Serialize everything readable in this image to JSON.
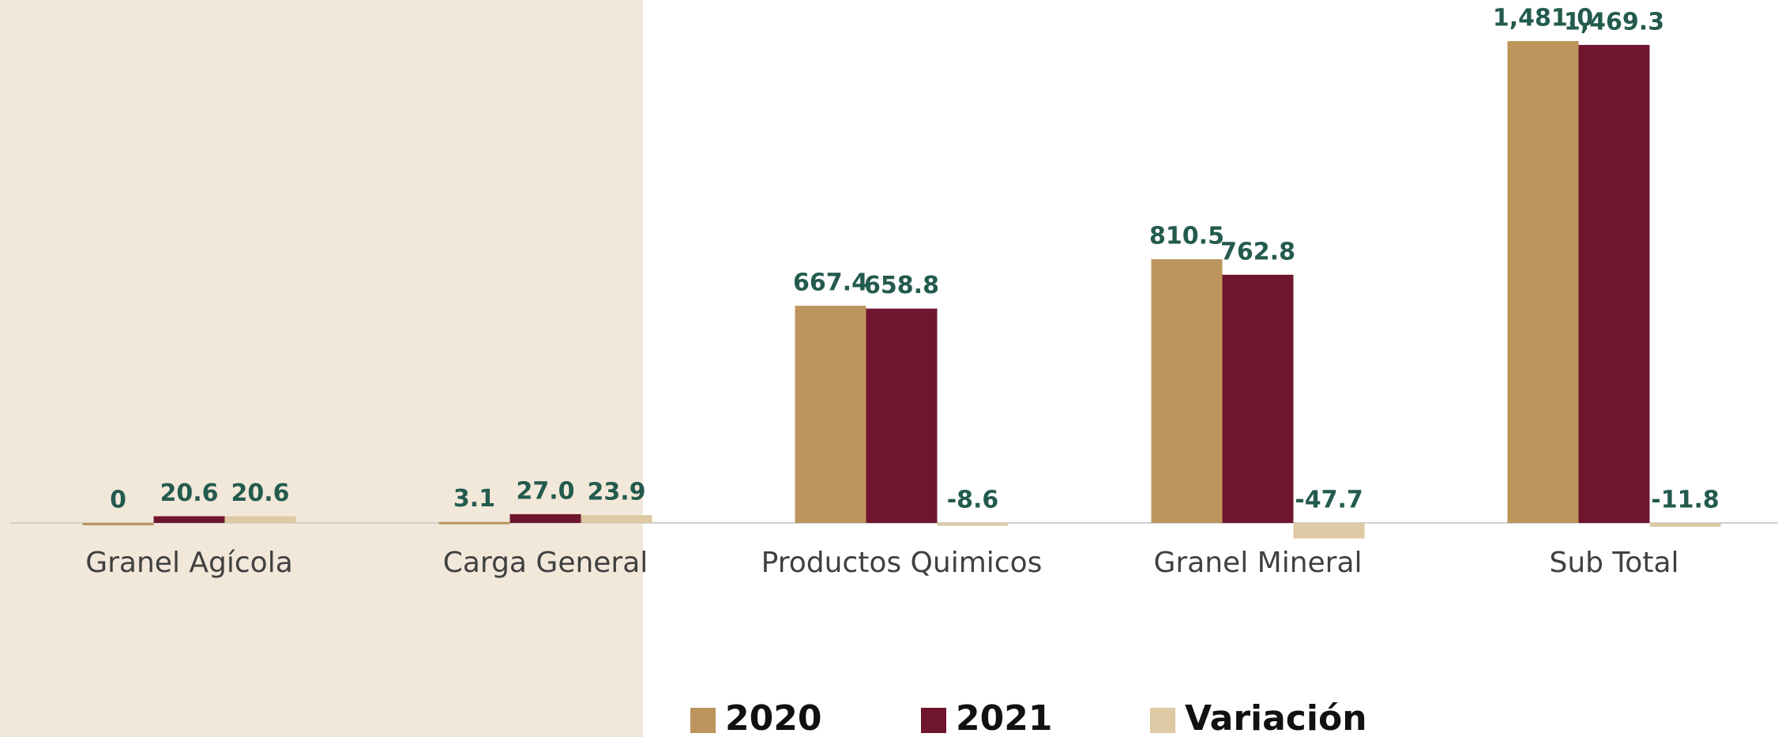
{
  "chart_data": {
    "type": "bar",
    "categories": [
      "Granel Agícola",
      "Carga General",
      "Productos Quimicos",
      "Granel Mineral",
      "Sub Total"
    ],
    "series": [
      {
        "name": "2020",
        "color": "#bc955c",
        "values": [
          0,
          3.1,
          667.4,
          810.5,
          1481.0
        ],
        "value_labels": [
          "0",
          "3.1",
          "667.4",
          "810.5",
          "1,481.0"
        ]
      },
      {
        "name": "2021",
        "color": "#6f152e",
        "values": [
          20.6,
          27.0,
          658.8,
          762.8,
          1469.3
        ],
        "value_labels": [
          "20.6",
          "27.0",
          "658.8",
          "762.8",
          "1,469.3"
        ]
      },
      {
        "name": "Variación",
        "color": "#ddc9a3",
        "values": [
          20.6,
          23.9,
          -8.6,
          -47.7,
          -11.8
        ],
        "value_labels": [
          "20.6",
          "23.9",
          "-8.6",
          "-47.7",
          "-11.8"
        ]
      }
    ],
    "legend": "bottom"
  }
}
